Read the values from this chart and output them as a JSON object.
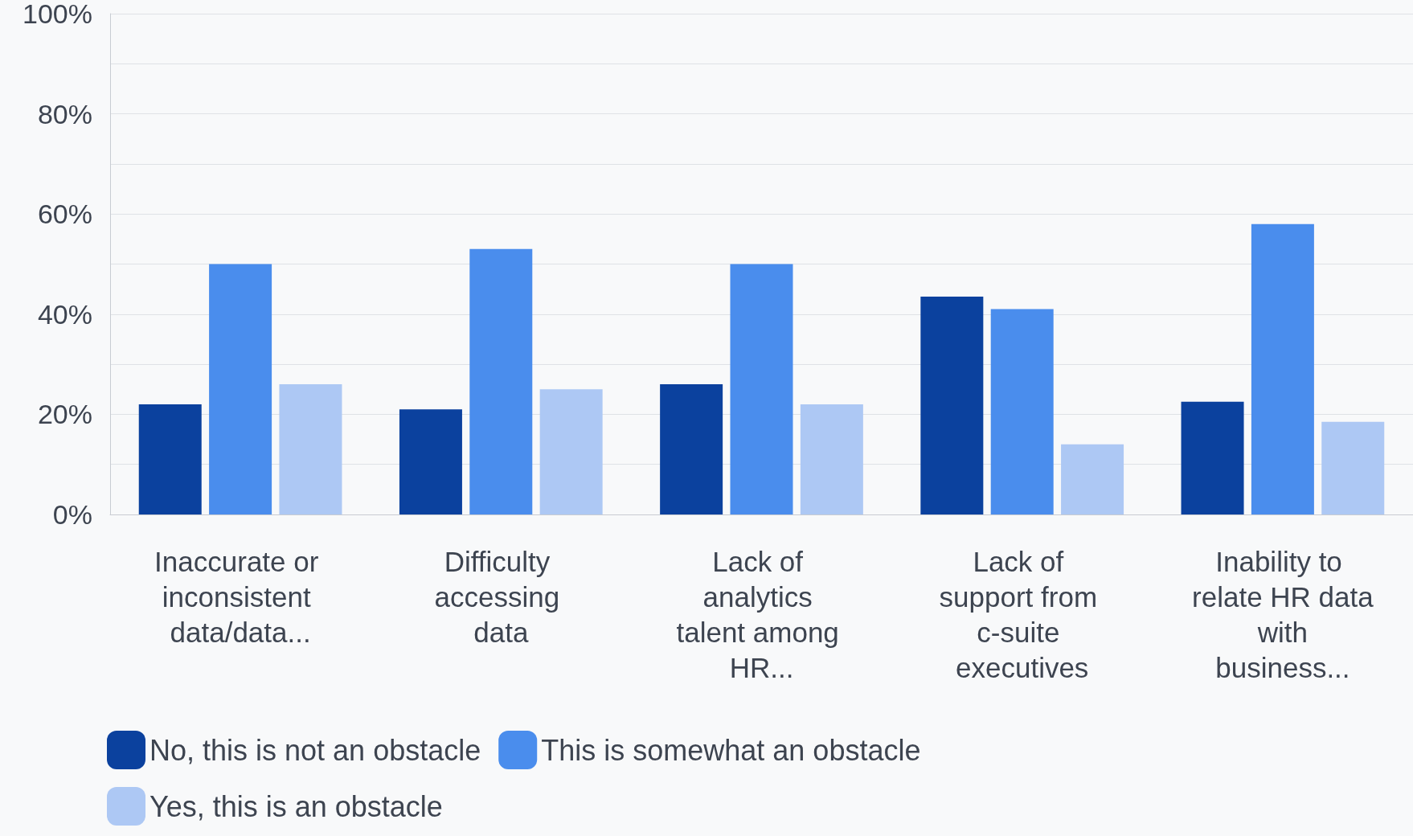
{
  "chart_data": {
    "type": "bar",
    "categories": [
      "Inaccurate or inconsistent data/data...",
      "Difficulty accessing data",
      "Lack of analytics talent among HR...",
      "Lack of support from c-suite executives",
      "Inability to relate HR data with business..."
    ],
    "series": [
      {
        "name": "No, this is not an obstacle",
        "color": "#0b419e",
        "values": [
          22,
          21,
          26,
          43.5,
          22.5
        ]
      },
      {
        "name": "This is somewhat an obstacle",
        "color": "#4a8ded",
        "values": [
          50,
          53,
          50,
          41,
          58
        ]
      },
      {
        "name": "Yes, this is an obstacle",
        "color": "#adc8f4",
        "values": [
          26,
          25,
          22,
          14,
          18.5
        ]
      }
    ],
    "ylim": [
      0,
      100
    ],
    "yticks": [
      {
        "value": 0,
        "label": "0%"
      },
      {
        "value": 10,
        "label": null
      },
      {
        "value": 20,
        "label": "20%"
      },
      {
        "value": 30,
        "label": null
      },
      {
        "value": 40,
        "label": "40%"
      },
      {
        "value": 50,
        "label": null
      },
      {
        "value": 60,
        "label": "60%"
      },
      {
        "value": 70,
        "label": null
      },
      {
        "value": 80,
        "label": "80%"
      },
      {
        "value": 90,
        "label": null
      },
      {
        "value": 100,
        "label": "100%"
      }
    ],
    "grid": "y",
    "legend": "bottom left"
  }
}
